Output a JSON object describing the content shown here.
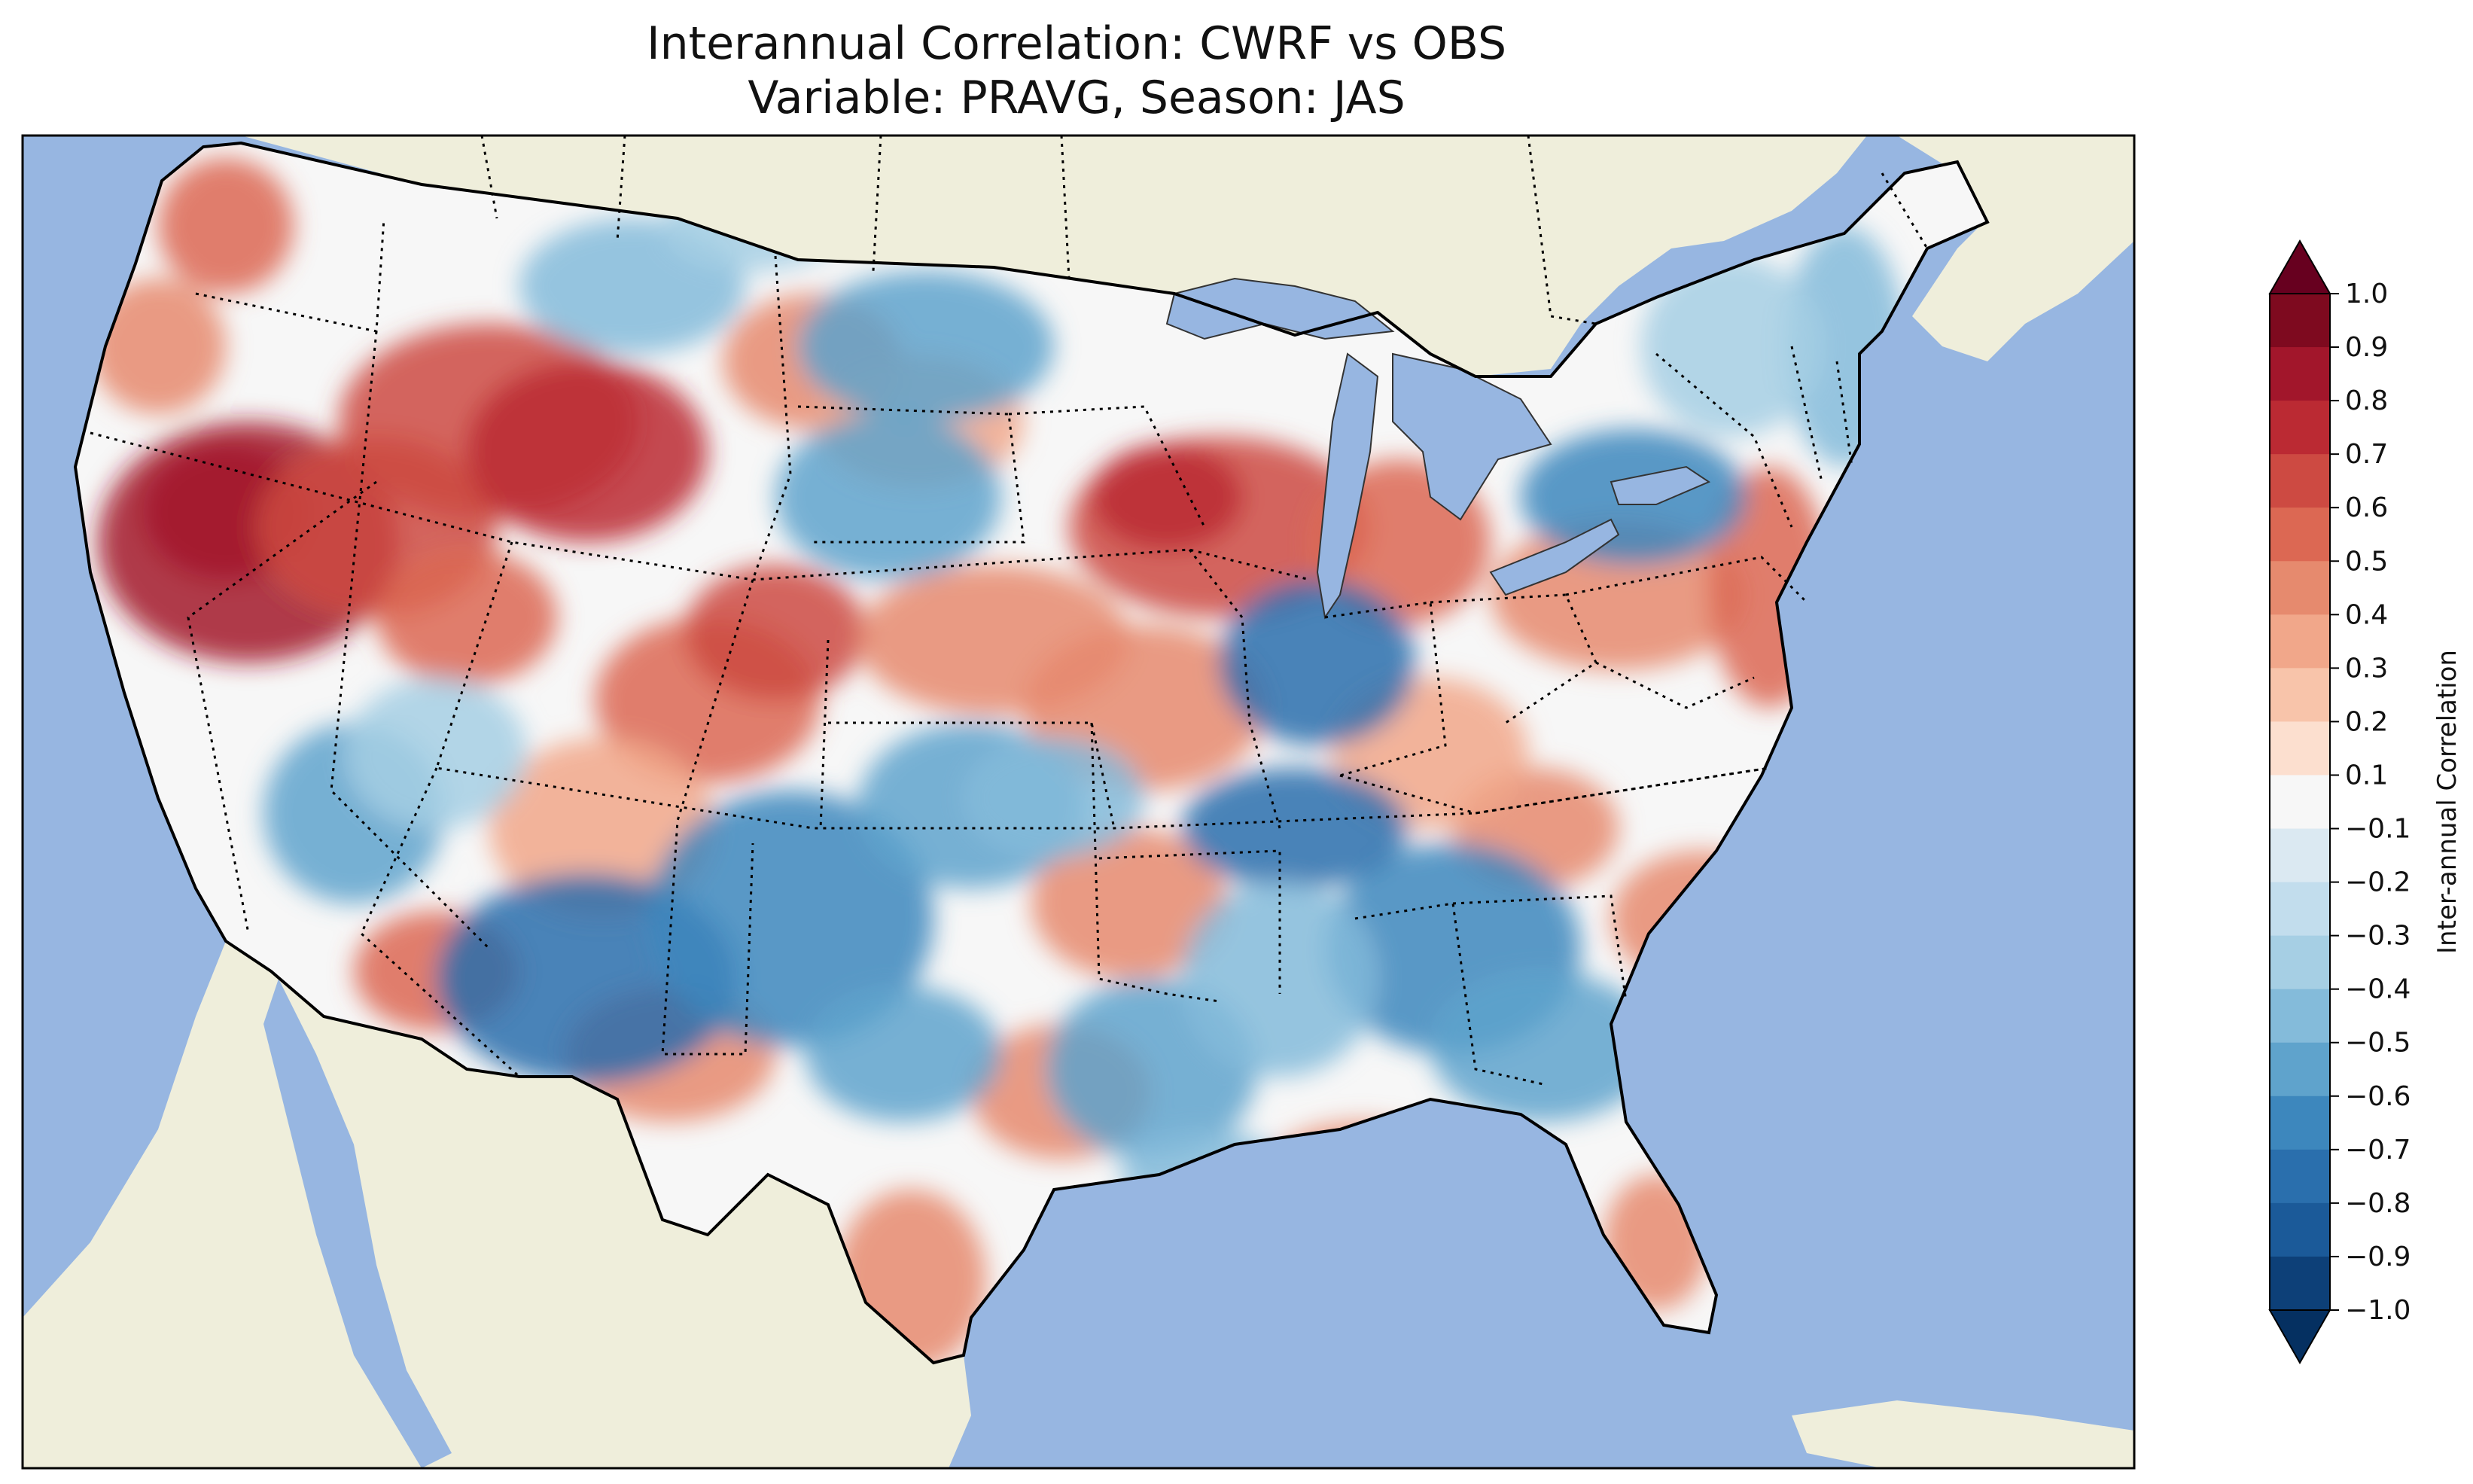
{
  "title": {
    "line1": "Interannual Correlation: CWRF vs OBS",
    "line2": "Variable: PRAVG, Season: JAS"
  },
  "colors": {
    "ocean": "#97b6e1",
    "land_outside": "#efeedb",
    "neutral": "#f7f7f7",
    "border": "#000000"
  },
  "colorbar": {
    "label": "Inter-annual Correlation",
    "extend": "both",
    "ticks": [
      "1.0",
      "0.9",
      "0.8",
      "0.7",
      "0.6",
      "0.5",
      "0.4",
      "0.3",
      "0.2",
      "0.1",
      "−0.1",
      "−0.2",
      "−0.3",
      "−0.4",
      "−0.5",
      "−0.6",
      "−0.7",
      "−0.8",
      "−0.9",
      "−1.0"
    ],
    "bins_top_to_bottom": [
      "#7e0a1f",
      "#a2162b",
      "#bb2a33",
      "#cd4a42",
      "#dc6853",
      "#e68a6e",
      "#f1a78a",
      "#f8c4aa",
      "#fcdfcf",
      "#f7f7f7",
      "#dbe9f2",
      "#c2dded",
      "#a6cfe4",
      "#84bbda",
      "#5fa3cc",
      "#3d87bd",
      "#2a6fad",
      "#1b5a99",
      "#0d4078"
    ]
  },
  "map": {
    "region": "Contiguous United States",
    "projection": "Lambert Conformal",
    "field_range": [
      -1.0,
      1.0
    ],
    "key_anomalies": [
      {
        "area": "Nevada / Great Basin",
        "correlation": 0.8
      },
      {
        "area": "Idaho-Montana-Wyoming",
        "correlation": 0.7
      },
      {
        "area": "Iowa / Wisconsin",
        "correlation": 0.6
      },
      {
        "area": "New Mexico / West Texas",
        "correlation": -0.6
      },
      {
        "area": "New York / Pennsylvania",
        "correlation": -0.6
      },
      {
        "area": "Georgia / Alabama",
        "correlation": -0.5
      },
      {
        "area": "Kentucky / Tennessee",
        "correlation": -0.6
      }
    ]
  }
}
